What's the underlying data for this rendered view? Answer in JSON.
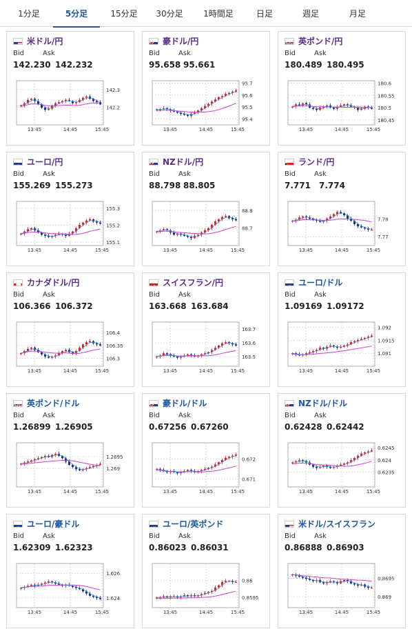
{
  "tabs": [
    {
      "label": "1分足",
      "active": false
    },
    {
      "label": "5分足",
      "active": true
    },
    {
      "label": "15分足",
      "active": false
    },
    {
      "label": "30分足",
      "active": false
    },
    {
      "label": "1時間足",
      "active": false
    },
    {
      "label": "日足",
      "active": false
    },
    {
      "label": "週足",
      "active": false
    },
    {
      "label": "月足",
      "active": false
    }
  ],
  "labels": {
    "bid": "Bid",
    "ask": "Ask"
  },
  "x_ticks": [
    "13:45",
    "14:45",
    "15:45"
  ],
  "colors": {
    "up": "#e62020",
    "down": "#1a2b8c",
    "ma_fast": "#3a8fd6",
    "ma_slow": "#d23cd2",
    "jpy_pair": "#5a2d8a",
    "usd_pair": "#1a57a4"
  },
  "cards": [
    {
      "name": "米ドル/円",
      "flag": "us-flag",
      "bid": "142.230",
      "ask": "142.232",
      "jpy": true,
      "chart_data": {
        "type": "candlestick",
        "ylim": [
          142.1,
          142.35
        ],
        "yticks": [
          "142.3",
          "142.2"
        ],
        "ytick_values": [
          142.3,
          142.2
        ],
        "start": 142.21,
        "ma_slow_start": 142.19,
        "trend": [
          0,
          2,
          5,
          6,
          4,
          1,
          -2,
          -4,
          -3,
          0,
          2,
          3,
          4,
          5,
          4,
          2,
          3,
          5,
          7,
          8,
          6,
          4,
          3,
          1
        ]
      }
    },
    {
      "name": "豪ドル/円",
      "flag": "au-flag",
      "bid": "95.658",
      "ask": "95.661",
      "jpy": true,
      "chart_data": {
        "type": "candlestick",
        "ylim": [
          95.35,
          95.72
        ],
        "yticks": [
          "95.7",
          "95.6",
          "95.5",
          "95.4"
        ],
        "ytick_values": [
          95.7,
          95.6,
          95.5,
          95.4
        ],
        "start": 95.48,
        "ma_slow_start": 95.45,
        "trend": [
          0,
          0,
          1,
          0,
          -1,
          -2,
          -3,
          -4,
          -5,
          -6,
          -4,
          -3,
          -1,
          1,
          3,
          5,
          7,
          9,
          11,
          12,
          14,
          15,
          16,
          17
        ]
      }
    },
    {
      "name": "英ポンド/円",
      "flag": "gb-flag",
      "bid": "180.489",
      "ask": "180.495",
      "jpy": true,
      "chart_data": {
        "type": "candlestick",
        "ylim": [
          180.43,
          180.61
        ],
        "yticks": [
          "180.6",
          "180.55",
          "180.5",
          "180.45"
        ],
        "ytick_values": [
          180.6,
          180.55,
          180.5,
          180.45
        ],
        "start": 180.5,
        "ma_slow_start": 180.5,
        "trend": [
          1,
          3,
          2,
          4,
          3,
          0,
          -1,
          -2,
          0,
          1,
          2,
          0,
          -1,
          1,
          2,
          3,
          2,
          1,
          0,
          -2,
          -1,
          1,
          0,
          -1
        ]
      }
    },
    {
      "name": "ユーロ/円",
      "flag": "eu-flag",
      "bid": "155.269",
      "ask": "155.273",
      "jpy": true,
      "chart_data": {
        "type": "candlestick",
        "ylim": [
          155.08,
          155.34
        ],
        "yticks": [
          "155.3",
          "155.2",
          "155.1"
        ],
        "ytick_values": [
          155.3,
          155.2,
          155.1
        ],
        "start": 155.15,
        "ma_slow_start": 155.14,
        "trend": [
          0,
          2,
          4,
          5,
          3,
          1,
          -1,
          -2,
          -3,
          -2,
          -1,
          0,
          -1,
          -2,
          0,
          2,
          5,
          8,
          10,
          12,
          13,
          11,
          10,
          9
        ]
      }
    },
    {
      "name": "NZドル/円",
      "flag": "nz-flag",
      "bid": "88.798",
      "ask": "88.805",
      "jpy": true,
      "chart_data": {
        "type": "candlestick",
        "ylim": [
          88.6,
          88.85
        ],
        "yticks": [
          "88.8",
          "88.7"
        ],
        "ytick_values": [
          88.8,
          88.7
        ],
        "start": 88.68,
        "ma_slow_start": 88.67,
        "trend": [
          0,
          1,
          2,
          1,
          -1,
          -3,
          -2,
          -3,
          -4,
          -5,
          -6,
          -4,
          -3,
          -1,
          1,
          3,
          6,
          9,
          11,
          13,
          14,
          12,
          11,
          10
        ]
      }
    },
    {
      "name": "ランド/円",
      "flag": "za-flag",
      "bid": "7.771",
      "ask": "7.774",
      "jpy": true,
      "chart_data": {
        "type": "candlestick",
        "ylim": [
          7.765,
          7.79
        ],
        "yticks": [
          "7.78",
          "7.77"
        ],
        "ytick_values": [
          7.78,
          7.77
        ],
        "start": 7.779,
        "ma_slow_start": 7.778,
        "trend": [
          0,
          1,
          3,
          4,
          3,
          2,
          1,
          0,
          -1,
          0,
          2,
          4,
          6,
          8,
          7,
          5,
          2,
          0,
          -3,
          -5,
          -6,
          -7,
          -8,
          -8
        ]
      }
    },
    {
      "name": "カナダドル/円",
      "flag": "ca-flag",
      "bid": "106.366",
      "ask": "106.372",
      "jpy": true,
      "chart_data": {
        "type": "candlestick",
        "ylim": [
          106.27,
          106.44
        ],
        "yticks": [
          "106.4",
          "106.35",
          "106.3"
        ],
        "ytick_values": [
          106.4,
          106.35,
          106.3
        ],
        "start": 106.32,
        "ma_slow_start": 106.32,
        "trend": [
          0,
          2,
          4,
          5,
          3,
          1,
          -1,
          -3,
          -4,
          -3,
          -2,
          0,
          2,
          3,
          1,
          0,
          2,
          5,
          8,
          10,
          11,
          9,
          8,
          7
        ]
      }
    },
    {
      "name": "スイスフラン/円",
      "flag": "ch-flag",
      "bid": "163.668",
      "ask": "163.684",
      "jpy": true,
      "chart_data": {
        "type": "candlestick",
        "ylim": [
          163.43,
          163.75
        ],
        "yticks": [
          "163.7",
          "163.6",
          "163.5"
        ],
        "ytick_values": [
          163.7,
          163.6,
          163.5
        ],
        "start": 163.5,
        "ma_slow_start": 163.5,
        "trend": [
          0,
          1,
          3,
          2,
          1,
          0,
          -1,
          0,
          1,
          2,
          1,
          0,
          1,
          2,
          3,
          4,
          6,
          8,
          10,
          12,
          13,
          12,
          11,
          10
        ]
      }
    },
    {
      "name": "ユーロ/ドル",
      "flag": "eu-flag",
      "bid": "1.09169",
      "ask": "1.09172",
      "jpy": false,
      "chart_data": {
        "type": "candlestick",
        "ylim": [
          1.0905,
          1.0922
        ],
        "yticks": [
          "1.092",
          "1.0915",
          "1.091"
        ],
        "ytick_values": [
          1.092,
          1.0915,
          1.091
        ],
        "start": 1.091,
        "ma_slow_start": 1.0909,
        "trend": [
          0,
          -1,
          -2,
          -1,
          0,
          1,
          2,
          3,
          5,
          4,
          6,
          7,
          6,
          5,
          6,
          7,
          8,
          10,
          11,
          12,
          13,
          14,
          15,
          16
        ]
      }
    },
    {
      "name": "英ポンド/ドル",
      "flag": "gb-flag",
      "bid": "1.26899",
      "ask": "1.26905",
      "jpy": false,
      "chart_data": {
        "type": "candlestick",
        "ylim": [
          1.2682,
          1.2701
        ],
        "yticks": [
          "1.2695",
          "1.269"
        ],
        "ytick_values": [
          1.2695,
          1.269
        ],
        "start": 1.2692,
        "ma_slow_start": 1.2691,
        "trend": [
          0,
          1,
          2,
          3,
          4,
          5,
          6,
          7,
          6,
          8,
          9,
          7,
          5,
          2,
          -1,
          -3,
          -5,
          -6,
          -5,
          -4,
          -3,
          -2,
          -1,
          0
        ]
      }
    },
    {
      "name": "豪ドル/ドル",
      "flag": "au-flag",
      "bid": "0.67256",
      "ask": "0.67260",
      "jpy": false,
      "chart_data": {
        "type": "candlestick",
        "ylim": [
          0.6706,
          0.6728
        ],
        "yticks": [
          "0.672",
          "0.671"
        ],
        "ytick_values": [
          0.672,
          0.671
        ],
        "start": 0.6715,
        "ma_slow_start": 0.6713,
        "trend": [
          0,
          -1,
          -2,
          -3,
          -2,
          -3,
          -4,
          -3,
          -2,
          -1,
          -2,
          -3,
          -2,
          -1,
          0,
          1,
          2,
          4,
          6,
          8,
          10,
          11,
          12,
          13
        ]
      }
    },
    {
      "name": "NZドル/ドル",
      "flag": "nz-flag",
      "bid": "0.62428",
      "ask": "0.62442",
      "jpy": false,
      "chart_data": {
        "type": "candlestick",
        "ylim": [
          0.6229,
          0.6247
        ],
        "yticks": [
          "0.6245",
          "0.624",
          "0.6235"
        ],
        "ytick_values": [
          0.6245,
          0.624,
          0.6235
        ],
        "start": 0.6239,
        "ma_slow_start": 0.6237,
        "trend": [
          0,
          1,
          2,
          1,
          0,
          -2,
          -4,
          -5,
          -4,
          -3,
          -4,
          -5,
          -4,
          -3,
          -2,
          -1,
          0,
          2,
          4,
          6,
          8,
          9,
          10,
          11
        ]
      }
    },
    {
      "name": "ユーロ/豪ドル",
      "flag": "eu-flag",
      "bid": "1.62309",
      "ask": "1.62323",
      "jpy": false,
      "chart_data": {
        "type": "candlestick",
        "ylim": [
          1.6232,
          1.6268
        ],
        "yticks": [
          "1.626",
          "1.624"
        ],
        "ytick_values": [
          1.626,
          1.624
        ],
        "start": 1.6248,
        "ma_slow_start": 1.6249,
        "trend": [
          0,
          1,
          2,
          3,
          2,
          3,
          4,
          5,
          6,
          5,
          4,
          3,
          2,
          3,
          2,
          1,
          0,
          -1,
          -3,
          -5,
          -7,
          -8,
          -9,
          -10
        ]
      }
    },
    {
      "name": "ユーロ/英ポンド",
      "flag": "eu-flag",
      "bid": "0.86023",
      "ask": "0.86031",
      "jpy": false,
      "chart_data": {
        "type": "candlestick",
        "ylim": [
          0.8592,
          0.8605
        ],
        "yticks": [
          "0.86",
          "0.8595"
        ],
        "ytick_values": [
          0.86,
          0.8595
        ],
        "start": 0.8595,
        "ma_slow_start": 0.8594,
        "trend": [
          0,
          0,
          1,
          0,
          1,
          1,
          0,
          1,
          2,
          1,
          2,
          1,
          2,
          3,
          4,
          5,
          6,
          9,
          11,
          14,
          15,
          15,
          14,
          14
        ]
      }
    },
    {
      "name": "米ドル/スイスフラン",
      "flag": "us-flag",
      "bid": "0.86888",
      "ask": "0.86903",
      "jpy": false,
      "chart_data": {
        "type": "candlestick",
        "ylim": [
          0.8687,
          0.8699
        ],
        "yticks": [
          "0.8695",
          "0.869"
        ],
        "ytick_values": [
          0.8695,
          0.869
        ],
        "start": 0.8696,
        "ma_slow_start": 0.8696,
        "trend": [
          0,
          -1,
          -2,
          -3,
          -4,
          -5,
          -6,
          -5,
          -7,
          -8,
          -7,
          -6,
          -7,
          -8,
          -6,
          -5,
          -6,
          -8,
          -9,
          -10,
          -9,
          -11,
          -12,
          -12
        ]
      }
    }
  ]
}
